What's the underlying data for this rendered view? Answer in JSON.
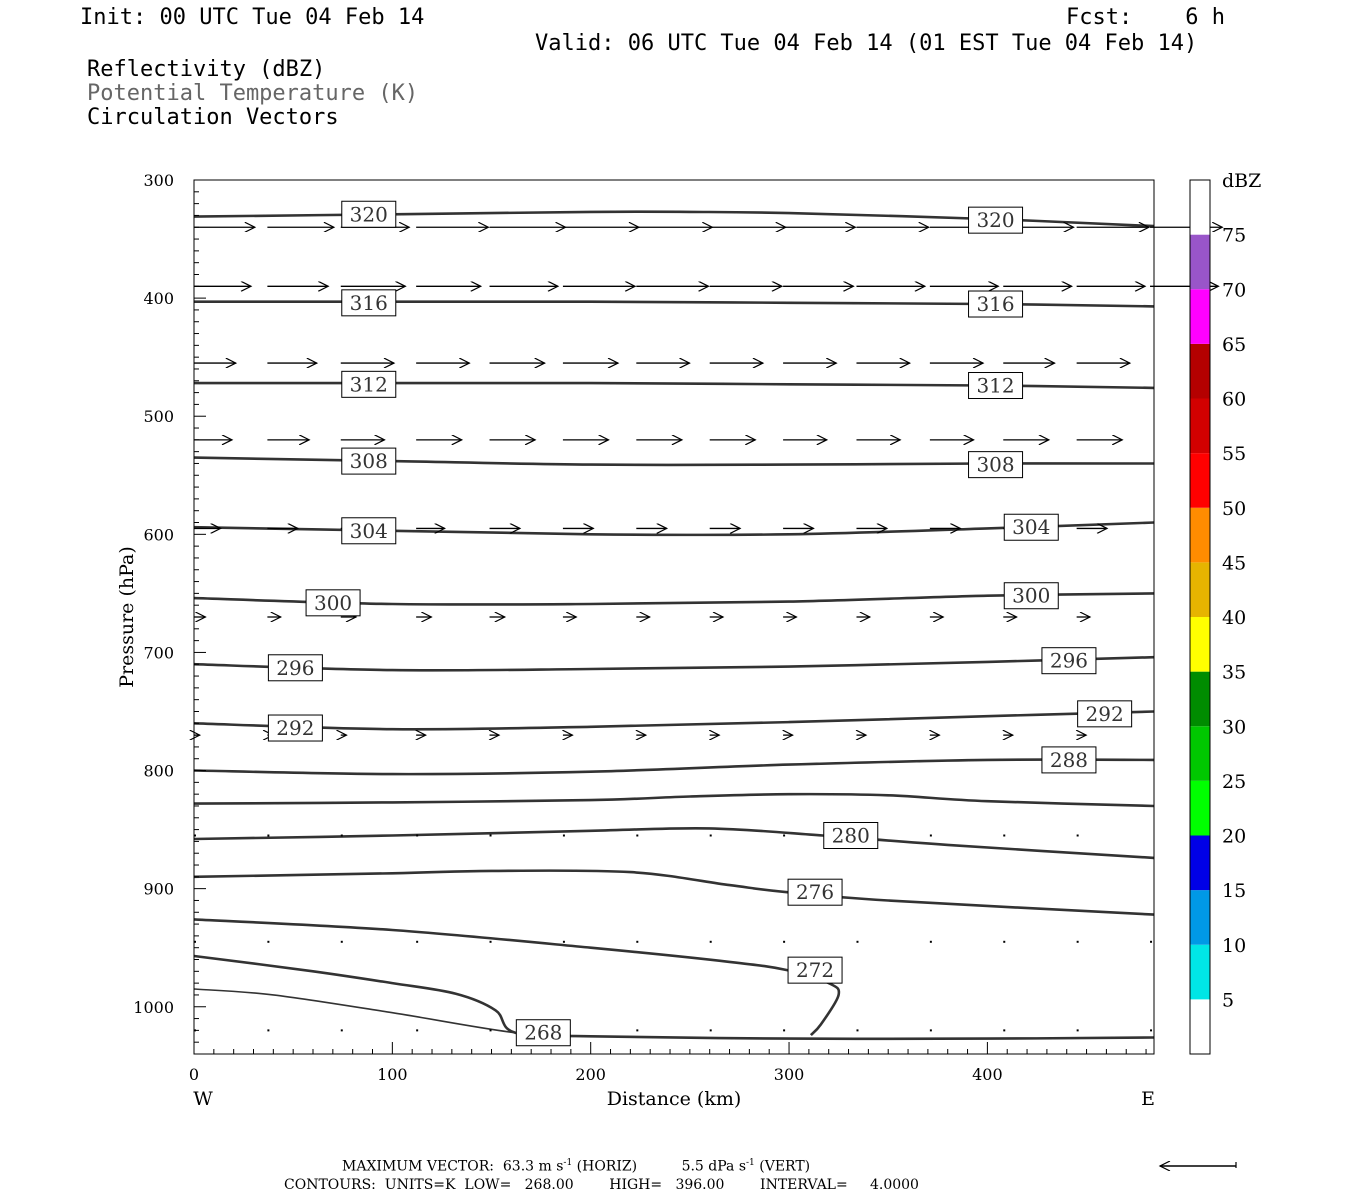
{
  "header": {
    "init": "Init: 00 UTC Tue 04 Feb 14",
    "fcst": "Fcst:    6 h",
    "valid": "Valid: 06 UTC Tue 04 Feb 14 (01 EST Tue 04 Feb 14)",
    "fields": [
      {
        "label": "Reflectivity (dBZ)",
        "color": "#000000"
      },
      {
        "label": "Potential Temperature (K)",
        "color": "#666666"
      },
      {
        "label": "Circulation Vectors",
        "color": "#000000"
      }
    ]
  },
  "footer": {
    "maxvec_prefix": "MAXIMUM VECTOR:  63.3 m s",
    "maxvec_sup1": "-1",
    "maxvec_mid": " (HORIZ)          5.5 dPa s",
    "maxvec_sup2": "-1",
    "maxvec_suffix": " (VERT)",
    "contours": "CONTOURS:  UNITS=K  LOW=   268.00        HIGH=   396.00        INTERVAL=     4.0000"
  },
  "chart_data": {
    "type": "line",
    "subtype": "vertical cross-section contour plot",
    "xlabel": "Distance (km)",
    "ylabel": "Pressure (hPa)",
    "xlim": [
      0,
      484
    ],
    "ylim": [
      1040,
      300
    ],
    "y_scale": "linear (inverted)",
    "x_ticks": [
      0,
      100,
      200,
      300,
      400
    ],
    "y_ticks": [
      300,
      400,
      500,
      600,
      700,
      800,
      900,
      1000
    ],
    "x_end_labels": {
      "left": "W",
      "right": "E"
    },
    "grid": false,
    "contour_units": "K",
    "contour_interval": 4,
    "contours": [
      {
        "level": 320,
        "labels": [
          [
            74,
            329
          ],
          [
            390,
            334
          ]
        ],
        "points": [
          [
            0,
            331
          ],
          [
            100,
            329
          ],
          [
            200,
            327
          ],
          [
            250,
            327
          ],
          [
            300,
            328
          ],
          [
            400,
            333
          ],
          [
            484,
            339
          ]
        ]
      },
      {
        "level": 316,
        "labels": [
          [
            74,
            404
          ],
          [
            390,
            405
          ]
        ],
        "points": [
          [
            0,
            403
          ],
          [
            100,
            403
          ],
          [
            200,
            403
          ],
          [
            300,
            404
          ],
          [
            400,
            405
          ],
          [
            484,
            407
          ]
        ]
      },
      {
        "level": 312,
        "labels": [
          [
            74,
            473
          ],
          [
            390,
            474
          ]
        ],
        "points": [
          [
            0,
            472
          ],
          [
            100,
            472
          ],
          [
            200,
            472
          ],
          [
            300,
            473
          ],
          [
            400,
            474
          ],
          [
            484,
            476
          ]
        ]
      },
      {
        "level": 308,
        "labels": [
          [
            74,
            538
          ],
          [
            390,
            541
          ]
        ],
        "points": [
          [
            0,
            535
          ],
          [
            100,
            538
          ],
          [
            200,
            541
          ],
          [
            300,
            541
          ],
          [
            400,
            540
          ],
          [
            484,
            540
          ]
        ]
      },
      {
        "level": 304,
        "labels": [
          [
            74,
            597
          ],
          [
            408,
            594
          ]
        ],
        "points": [
          [
            0,
            594
          ],
          [
            100,
            597
          ],
          [
            200,
            600
          ],
          [
            300,
            600
          ],
          [
            400,
            595
          ],
          [
            484,
            590
          ]
        ]
      },
      {
        "level": 300,
        "labels": [
          [
            56,
            658
          ],
          [
            408,
            652
          ]
        ],
        "points": [
          [
            0,
            654
          ],
          [
            100,
            659
          ],
          [
            200,
            659
          ],
          [
            300,
            657
          ],
          [
            400,
            652
          ],
          [
            484,
            650
          ]
        ]
      },
      {
        "level": 296,
        "labels": [
          [
            37,
            713
          ],
          [
            427,
            707
          ]
        ],
        "points": [
          [
            0,
            710
          ],
          [
            100,
            715
          ],
          [
            200,
            714
          ],
          [
            300,
            712
          ],
          [
            400,
            708
          ],
          [
            484,
            704
          ]
        ]
      },
      {
        "level": 292,
        "labels": [
          [
            37,
            764
          ],
          [
            445,
            752
          ]
        ],
        "points": [
          [
            0,
            760
          ],
          [
            100,
            765
          ],
          [
            200,
            763
          ],
          [
            300,
            759
          ],
          [
            400,
            754
          ],
          [
            484,
            750
          ]
        ]
      },
      {
        "level": 288,
        "labels": [
          [
            427,
            791
          ]
        ],
        "points": [
          [
            0,
            800
          ],
          [
            100,
            803
          ],
          [
            200,
            801
          ],
          [
            300,
            795
          ],
          [
            400,
            791
          ],
          [
            484,
            791
          ]
        ]
      },
      {
        "level": 284,
        "labels": [],
        "points": [
          [
            0,
            828
          ],
          [
            100,
            827
          ],
          [
            200,
            825
          ],
          [
            250,
            822
          ],
          [
            300,
            820
          ],
          [
            350,
            821
          ],
          [
            400,
            826
          ],
          [
            484,
            830
          ]
        ]
      },
      {
        "level": 280,
        "labels": [
          [
            317,
            855
          ]
        ],
        "points": [
          [
            0,
            858
          ],
          [
            100,
            855
          ],
          [
            200,
            851
          ],
          [
            260,
            849
          ],
          [
            317,
            855
          ],
          [
            380,
            863
          ],
          [
            484,
            874
          ]
        ]
      },
      {
        "level": 276,
        "labels": [
          [
            299,
            903
          ]
        ],
        "points": [
          [
            0,
            890
          ],
          [
            100,
            887
          ],
          [
            150,
            885
          ],
          [
            220,
            886
          ],
          [
            270,
            897
          ],
          [
            299,
            903
          ],
          [
            350,
            910
          ],
          [
            484,
            922
          ]
        ]
      },
      {
        "level": 272,
        "labels": [
          [
            299,
            969
          ]
        ],
        "points": [
          [
            0,
            926
          ],
          [
            100,
            935
          ],
          [
            200,
            950
          ],
          [
            270,
            962
          ],
          [
            299,
            969
          ],
          [
            320,
            980
          ],
          [
            325,
            990
          ],
          [
            316,
            1015
          ],
          [
            311,
            1024
          ]
        ]
      },
      {
        "level": 268,
        "labels": [
          [
            162,
            1022
          ]
        ],
        "points": [
          [
            0,
            957
          ],
          [
            60,
            970
          ],
          [
            100,
            980
          ],
          [
            132,
            989
          ],
          [
            152,
            1003
          ],
          [
            162,
            1022
          ],
          [
            200,
            1025
          ],
          [
            300,
            1027
          ],
          [
            400,
            1027
          ],
          [
            484,
            1026
          ]
        ]
      }
    ],
    "unlabeled_contours": [
      {
        "points": [
          [
            0,
            985
          ],
          [
            40,
            990
          ],
          [
            100,
            1005
          ],
          [
            162,
            1022
          ],
          [
            200,
            1025
          ]
        ]
      }
    ],
    "vector_rows": [
      {
        "p": 340,
        "x": [
          0,
          37,
          74,
          112,
          149,
          186,
          223,
          260,
          297,
          334,
          371,
          408,
          445,
          482
        ],
        "u": [
          32,
          35,
          36,
          38,
          40,
          40,
          40,
          40,
          38,
          38,
          38,
          37,
          38,
          38
        ]
      },
      {
        "p": 390,
        "x": [
          0,
          37,
          74,
          112,
          149,
          186,
          223,
          260,
          297,
          334,
          371,
          408,
          445,
          482
        ],
        "u": [
          30,
          32,
          34,
          34,
          36,
          38,
          38,
          38,
          37,
          36,
          36,
          36,
          36,
          36
        ]
      },
      {
        "p": 455,
        "x": [
          0,
          37,
          74,
          112,
          149,
          186,
          223,
          260,
          297,
          334,
          371,
          408,
          445
        ],
        "u": [
          22,
          26,
          28,
          28,
          29,
          29,
          28,
          28,
          28,
          28,
          28,
          27,
          28
        ]
      },
      {
        "p": 520,
        "x": [
          0,
          37,
          74,
          112,
          149,
          186,
          223,
          260,
          297,
          334,
          371,
          408,
          445
        ],
        "u": [
          20,
          22,
          23,
          24,
          24,
          24,
          24,
          24,
          23,
          23,
          23,
          24,
          24
        ]
      },
      {
        "p": 595,
        "x": [
          0,
          37,
          74,
          112,
          149,
          186,
          223,
          260,
          297,
          334,
          371,
          408,
          445
        ],
        "u": [
          14,
          16,
          16,
          15,
          16,
          16,
          16,
          16,
          16,
          16,
          16,
          16,
          16
        ]
      },
      {
        "p": 670,
        "x": [
          0,
          37,
          74,
          112,
          149,
          186,
          223,
          260,
          297,
          334,
          371,
          408,
          445
        ],
        "u": [
          6,
          7,
          8,
          8,
          8,
          7,
          7,
          7,
          7,
          7,
          7,
          7,
          7
        ]
      },
      {
        "p": 770,
        "x": [
          0,
          37,
          74,
          112,
          149,
          186,
          223,
          260,
          297,
          334,
          371,
          408,
          445
        ],
        "u": [
          3,
          3,
          3,
          5,
          5,
          5,
          5,
          5,
          5,
          5,
          5,
          5,
          5
        ]
      },
      {
        "p": 855,
        "x": [
          0,
          37,
          74,
          112,
          149,
          186,
          223,
          260,
          297,
          334,
          371,
          408,
          445
        ],
        "u": [
          1,
          1,
          1,
          1,
          1,
          1,
          1,
          1,
          1,
          1,
          1,
          1,
          1
        ]
      },
      {
        "p": 945,
        "x": [
          0,
          37,
          74,
          112,
          149,
          186,
          223,
          260,
          297,
          334,
          371,
          408,
          445,
          482
        ],
        "u": [
          1,
          1,
          1,
          1,
          1,
          1,
          1,
          1,
          1,
          1,
          1,
          1,
          1,
          1
        ]
      },
      {
        "p": 1020,
        "x": [
          0,
          37,
          74,
          112,
          149,
          186,
          223,
          260,
          297,
          334,
          371,
          408,
          445,
          482
        ],
        "u": [
          1,
          1,
          1,
          1,
          1,
          1,
          1,
          1,
          1,
          1,
          1,
          1,
          1,
          1
        ]
      }
    ],
    "colorbar": {
      "title": "dBZ",
      "ticks": [
        5,
        10,
        15,
        20,
        25,
        30,
        35,
        40,
        45,
        50,
        55,
        60,
        65,
        70,
        75
      ],
      "segments": [
        {
          "from": 0,
          "to": 5,
          "color": "#ffffff"
        },
        {
          "from": 5,
          "to": 10,
          "color": "#00e6e6"
        },
        {
          "from": 10,
          "to": 15,
          "color": "#0099e6"
        },
        {
          "from": 15,
          "to": 20,
          "color": "#0000e6"
        },
        {
          "from": 20,
          "to": 25,
          "color": "#00ff00"
        },
        {
          "from": 25,
          "to": 30,
          "color": "#00c800"
        },
        {
          "from": 30,
          "to": 35,
          "color": "#008c00"
        },
        {
          "from": 35,
          "to": 40,
          "color": "#ffff00"
        },
        {
          "from": 40,
          "to": 45,
          "color": "#e6b400"
        },
        {
          "from": 45,
          "to": 50,
          "color": "#ff8c00"
        },
        {
          "from": 50,
          "to": 55,
          "color": "#ff0000"
        },
        {
          "from": 55,
          "to": 60,
          "color": "#d20000"
        },
        {
          "from": 60,
          "to": 65,
          "color": "#b40000"
        },
        {
          "from": 65,
          "to": 70,
          "color": "#ff00ff"
        },
        {
          "from": 70,
          "to": 75,
          "color": "#9955c9"
        },
        {
          "from": 75,
          "to": 80,
          "color": "#ffffff"
        }
      ]
    }
  }
}
